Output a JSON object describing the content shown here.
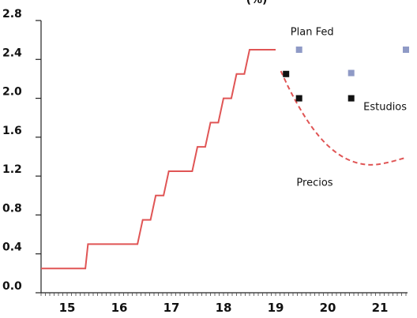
{
  "chart_data": {
    "type": "line",
    "title": "(%)",
    "xlabel": "",
    "ylabel": "",
    "xlim": [
      14.5,
      21.5
    ],
    "ylim": [
      0.0,
      2.8
    ],
    "x_ticks": [
      "15",
      "16",
      "17",
      "18",
      "19",
      "20",
      "21"
    ],
    "y_ticks": [
      "0.0",
      "0.4",
      "0.8",
      "1.2",
      "1.6",
      "2.0",
      "2.4",
      "2.8"
    ],
    "grid": false,
    "series": [
      {
        "style": "step",
        "color": "#e05555",
        "points": [
          [
            14.5,
            0.25
          ],
          [
            15.35,
            0.25
          ],
          [
            15.4,
            0.5
          ],
          [
            16.35,
            0.5
          ],
          [
            16.45,
            0.75
          ],
          [
            16.6,
            0.75
          ],
          [
            16.7,
            1.0
          ],
          [
            16.85,
            1.0
          ],
          [
            16.95,
            1.25
          ],
          [
            17.4,
            1.25
          ],
          [
            17.5,
            1.5
          ],
          [
            17.65,
            1.5
          ],
          [
            17.75,
            1.75
          ],
          [
            17.9,
            1.75
          ],
          [
            18.0,
            2.0
          ],
          [
            18.15,
            2.0
          ],
          [
            18.25,
            2.25
          ],
          [
            18.4,
            2.25
          ],
          [
            18.5,
            2.5
          ],
          [
            19.0,
            2.5
          ]
        ]
      },
      {
        "name": "Precios",
        "style": "dashed",
        "color": "#e05555",
        "points": [
          [
            19.1,
            2.28
          ],
          [
            19.3,
            2.05
          ],
          [
            19.6,
            1.77
          ],
          [
            19.9,
            1.56
          ],
          [
            20.2,
            1.42
          ],
          [
            20.5,
            1.34
          ],
          [
            20.8,
            1.31
          ],
          [
            21.1,
            1.33
          ],
          [
            21.5,
            1.39
          ]
        ]
      },
      {
        "name": "Plan Fed",
        "style": "markers",
        "color": "#8f9ac6",
        "points": [
          [
            19.45,
            2.5
          ],
          [
            20.45,
            2.26
          ],
          [
            21.5,
            2.5
          ]
        ]
      },
      {
        "name": "Estudios",
        "style": "markers",
        "color": "#111111",
        "points": [
          [
            19.2,
            2.25
          ],
          [
            19.45,
            2.0
          ],
          [
            20.45,
            2.0
          ]
        ]
      }
    ],
    "annotations": [
      {
        "label": "Plan Fed",
        "x": 19.7,
        "y": 2.65
      },
      {
        "label": "Estudios",
        "x": 21.1,
        "y": 1.88
      },
      {
        "label": "Precios",
        "x": 19.75,
        "y": 1.1
      }
    ]
  }
}
